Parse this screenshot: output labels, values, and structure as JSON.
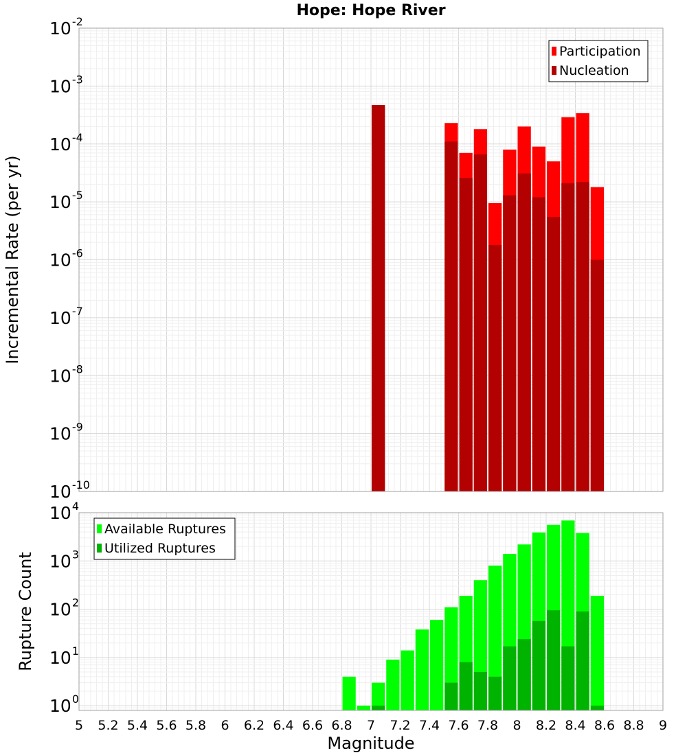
{
  "chart_data": [
    {
      "type": "bar",
      "title": "Hope: Hope River",
      "xlabel": "",
      "ylabel": "Incremental Rate (per yr)",
      "yscale": "log",
      "ylim": [
        1e-10,
        0.01
      ],
      "xlim": [
        5,
        9
      ],
      "bar_width": 0.1,
      "legend_position": "top-right",
      "yticks": [
        {
          "base": "10",
          "exp": "-10",
          "value": 1e-10
        },
        {
          "base": "10",
          "exp": "-9",
          "value": 1e-09
        },
        {
          "base": "10",
          "exp": "-8",
          "value": 1e-08
        },
        {
          "base": "10",
          "exp": "-7",
          "value": 1e-07
        },
        {
          "base": "10",
          "exp": "-6",
          "value": 1e-06
        },
        {
          "base": "10",
          "exp": "-5",
          "value": 1e-05
        },
        {
          "base": "10",
          "exp": "-4",
          "value": 0.0001
        },
        {
          "base": "10",
          "exp": "-3",
          "value": 0.001
        },
        {
          "base": "10",
          "exp": "-2",
          "value": 0.01
        }
      ],
      "series": [
        {
          "name": "Participation",
          "color": "#ff0000",
          "x": [
            7.05,
            7.55,
            7.65,
            7.75,
            7.85,
            7.95,
            8.05,
            8.15,
            8.25,
            8.35,
            8.45,
            8.55
          ],
          "values": [
            0.00047,
            0.00023,
            7e-05,
            0.00018,
            9.5e-06,
            8e-05,
            0.0002,
            9e-05,
            5e-05,
            0.00029,
            0.00034,
            1.8e-05
          ]
        },
        {
          "name": "Nucleation",
          "color": "#b30000",
          "x": [
            7.05,
            7.55,
            7.65,
            7.75,
            7.85,
            7.95,
            8.05,
            8.15,
            8.25,
            8.35,
            8.45,
            8.55
          ],
          "values": [
            0.00047,
            0.00011,
            2.6e-05,
            6.6e-05,
            1.8e-06,
            1.3e-05,
            3.1e-05,
            1.2e-05,
            5.5e-06,
            2.1e-05,
            2.2e-05,
            1e-06
          ]
        }
      ]
    },
    {
      "type": "bar",
      "title": "",
      "xlabel": "Magnitude",
      "ylabel": "Rupture Count",
      "yscale": "log",
      "ylim": [
        0.8,
        10000
      ],
      "xlim": [
        5,
        9
      ],
      "bar_width": 0.1,
      "legend_position": "top-left",
      "xticks": [
        "5",
        "5.2",
        "5.4",
        "5.6",
        "5.8",
        "6",
        "6.2",
        "6.4",
        "6.6",
        "6.8",
        "7",
        "7.2",
        "7.4",
        "7.6",
        "7.8",
        "8",
        "8.2",
        "8.4",
        "8.6",
        "8.8",
        "9"
      ],
      "yticks": [
        {
          "base": "10",
          "exp": "0",
          "value": 1
        },
        {
          "base": "10",
          "exp": "1",
          "value": 10
        },
        {
          "base": "10",
          "exp": "2",
          "value": 100
        },
        {
          "base": "10",
          "exp": "3",
          "value": 1000
        },
        {
          "base": "10",
          "exp": "4",
          "value": 10000
        }
      ],
      "series": [
        {
          "name": "Available Ruptures",
          "color": "#00ff00",
          "x": [
            6.85,
            6.95,
            7.05,
            7.15,
            7.25,
            7.35,
            7.45,
            7.55,
            7.65,
            7.75,
            7.85,
            7.95,
            8.05,
            8.15,
            8.25,
            8.35,
            8.45,
            8.55
          ],
          "values": [
            4,
            1,
            3,
            9,
            14,
            38,
            60,
            110,
            190,
            400,
            800,
            1400,
            2200,
            3900,
            5600,
            6900,
            3800,
            190
          ]
        },
        {
          "name": "Utilized Ruptures",
          "color": "#00b300",
          "x": [
            7.05,
            7.55,
            7.65,
            7.75,
            7.85,
            7.95,
            8.05,
            8.15,
            8.25,
            8.35,
            8.45,
            8.55
          ],
          "values": [
            1,
            3,
            8,
            5,
            4,
            17,
            24,
            57,
            95,
            17,
            90,
            1
          ]
        }
      ]
    }
  ]
}
